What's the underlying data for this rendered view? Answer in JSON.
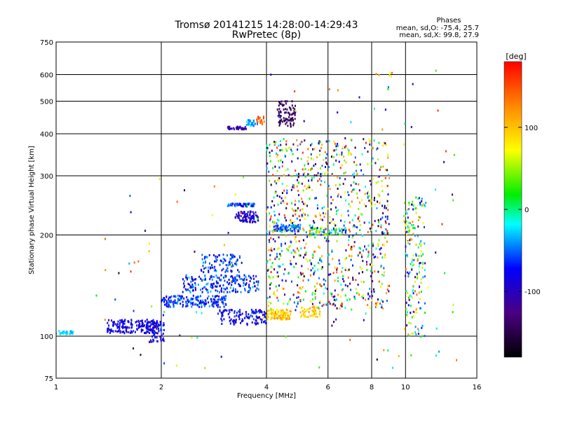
{
  "chart_data": {
    "type": "scatter",
    "title": "Tromsø 20141215 14:28:00-14:29:43",
    "subtitle": "RwPretec (8p)",
    "stats": {
      "header": "Phases",
      "line_o": "mean, sd,O: -75.4, 25.7",
      "line_x": "mean, sd,X: 99.8, 27.9"
    },
    "xlabel": "Frequency [MHz]",
    "ylabel": "Stationary phase Virtual Height [km]",
    "xscale": "log",
    "yscale": "log",
    "xlim": [
      1,
      16
    ],
    "ylim": [
      75,
      750
    ],
    "xticks": [
      1,
      2,
      4,
      6,
      8,
      10,
      16
    ],
    "xtick_labels": [
      "1",
      "2",
      "4",
      "6",
      "8",
      "10",
      "16"
    ],
    "yticks": [
      75,
      100,
      200,
      300,
      400,
      500,
      600,
      750
    ],
    "ytick_labels": [
      "75",
      "100",
      "200",
      "300",
      "400",
      "500",
      "600",
      "750"
    ],
    "grid": true,
    "colorbar": {
      "label": "[deg]",
      "range": [
        -180,
        180
      ],
      "ticks": [
        100,
        0,
        -100
      ],
      "tick_labels": [
        "100",
        "0",
        "-100"
      ]
    },
    "clusters": [
      {
        "f": [
          1.0,
          1.12
        ],
        "h": [
          101,
          104
        ],
        "phase": [
          -40,
          -20
        ],
        "n": 30
      },
      {
        "f": [
          1.4,
          1.95
        ],
        "h": [
          102,
          112
        ],
        "phase": [
          -110,
          -70
        ],
        "n": 180
      },
      {
        "f": [
          1.85,
          2.05
        ],
        "h": [
          96,
          112
        ],
        "phase": [
          -120,
          -60
        ],
        "n": 60
      },
      {
        "f": [
          2.0,
          3.1
        ],
        "h": [
          122,
          132
        ],
        "phase": [
          -100,
          -40
        ],
        "n": 180
      },
      {
        "f": [
          2.3,
          3.8
        ],
        "h": [
          135,
          152
        ],
        "phase": [
          -110,
          -30
        ],
        "n": 200
      },
      {
        "f": [
          2.6,
          3.4
        ],
        "h": [
          155,
          175
        ],
        "phase": [
          -100,
          -40
        ],
        "n": 90
      },
      {
        "f": [
          2.9,
          4.0
        ],
        "h": [
          108,
          120
        ],
        "phase": [
          -110,
          -60
        ],
        "n": 120
      },
      {
        "f": [
          3.1,
          3.7
        ],
        "h": [
          243,
          248
        ],
        "phase": [
          -90,
          -40
        ],
        "n": 60
      },
      {
        "f": [
          3.25,
          3.8
        ],
        "h": [
          218,
          235
        ],
        "phase": [
          -120,
          -80
        ],
        "n": 80
      },
      {
        "f": [
          3.1,
          3.5
        ],
        "h": [
          412,
          420
        ],
        "phase": [
          -130,
          -100
        ],
        "n": 40
      },
      {
        "f": [
          3.5,
          3.8
        ],
        "h": [
          422,
          440
        ],
        "phase": [
          -60,
          -20
        ],
        "n": 30
      },
      {
        "f": [
          3.75,
          3.95
        ],
        "h": [
          425,
          450
        ],
        "phase": [
          130,
          160
        ],
        "n": 20
      },
      {
        "f": [
          4.3,
          4.85
        ],
        "h": [
          420,
          500
        ],
        "phase": [
          -160,
          -130
        ],
        "n": 90
      },
      {
        "f": [
          4.0,
          4.7
        ],
        "h": [
          112,
          120
        ],
        "phase": [
          80,
          130
        ],
        "n": 100
      },
      {
        "f": [
          5.0,
          5.7
        ],
        "h": [
          114,
          122
        ],
        "phase": [
          80,
          120
        ],
        "n": 50
      },
      {
        "f": [
          4.2,
          5.0
        ],
        "h": [
          205,
          215
        ],
        "phase": [
          -80,
          -40
        ],
        "n": 70
      },
      {
        "f": [
          5.3,
          6.8
        ],
        "h": [
          200,
          210
        ],
        "phase": [
          -100,
          130
        ],
        "n": 70
      },
      {
        "f": [
          4.0,
          9.0
        ],
        "h": [
          120,
          390
        ],
        "phase": [
          -170,
          170
        ],
        "n": 900
      },
      {
        "f": [
          9.9,
          11.4
        ],
        "h": [
          100,
          260
        ],
        "phase": [
          -140,
          140
        ],
        "n": 180
      },
      {
        "f": [
          8.0,
          9.2
        ],
        "h": [
          585,
          610
        ],
        "phase": [
          40,
          150
        ],
        "n": 6
      },
      {
        "f": [
          1.3,
          4.0
        ],
        "h": [
          78,
          300
        ],
        "phase": [
          -170,
          170
        ],
        "n": 50
      },
      {
        "f": [
          4.0,
          14.0
        ],
        "h": [
          80,
          620
        ],
        "phase": [
          -170,
          170
        ],
        "n": 90
      }
    ]
  }
}
